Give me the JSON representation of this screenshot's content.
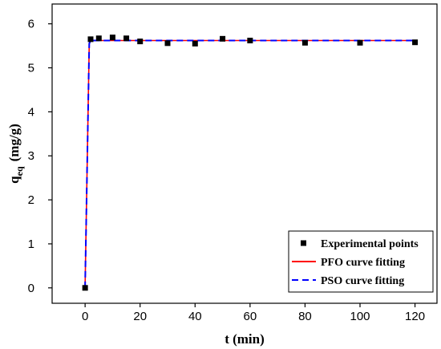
{
  "chart_data": {
    "type": "scatter",
    "xlabel": "t (min)",
    "ylabel_main": "q",
    "ylabel_sub": "eq",
    "ylabel_unit": "(mg/g)",
    "xlim": [
      -12,
      128
    ],
    "ylim": [
      -0.35,
      6.45
    ],
    "xticks": [
      0,
      20,
      40,
      60,
      80,
      100,
      120
    ],
    "yticks": [
      0,
      1,
      2,
      3,
      4,
      5,
      6
    ],
    "grid": false,
    "legend_position": "bottom-right",
    "series": [
      {
        "name": "Experimental points",
        "kind": "points",
        "marker": "square",
        "color": "#000000",
        "x": [
          0,
          2,
          5,
          10,
          15,
          20,
          30,
          40,
          50,
          60,
          80,
          100,
          120
        ],
        "y": [
          0.0,
          5.65,
          5.67,
          5.69,
          5.67,
          5.6,
          5.56,
          5.55,
          5.66,
          5.62,
          5.57,
          5.57,
          5.58
        ]
      },
      {
        "name": "PFO curve fitting",
        "kind": "line",
        "style": "solid",
        "color": "#ff0000",
        "x": [
          0,
          1.5,
          2,
          5,
          10,
          20,
          40,
          60,
          80,
          100,
          120
        ],
        "y": [
          0.0,
          5.55,
          5.62,
          5.62,
          5.62,
          5.62,
          5.62,
          5.62,
          5.62,
          5.62,
          5.62
        ]
      },
      {
        "name": "PSO curve fitting",
        "kind": "line",
        "style": "dashed",
        "color": "#0000ff",
        "x": [
          0,
          1.5,
          2,
          5,
          10,
          20,
          40,
          60,
          80,
          100,
          120
        ],
        "y": [
          0.0,
          5.55,
          5.62,
          5.62,
          5.62,
          5.62,
          5.62,
          5.62,
          5.62,
          5.62,
          5.62
        ]
      }
    ]
  }
}
